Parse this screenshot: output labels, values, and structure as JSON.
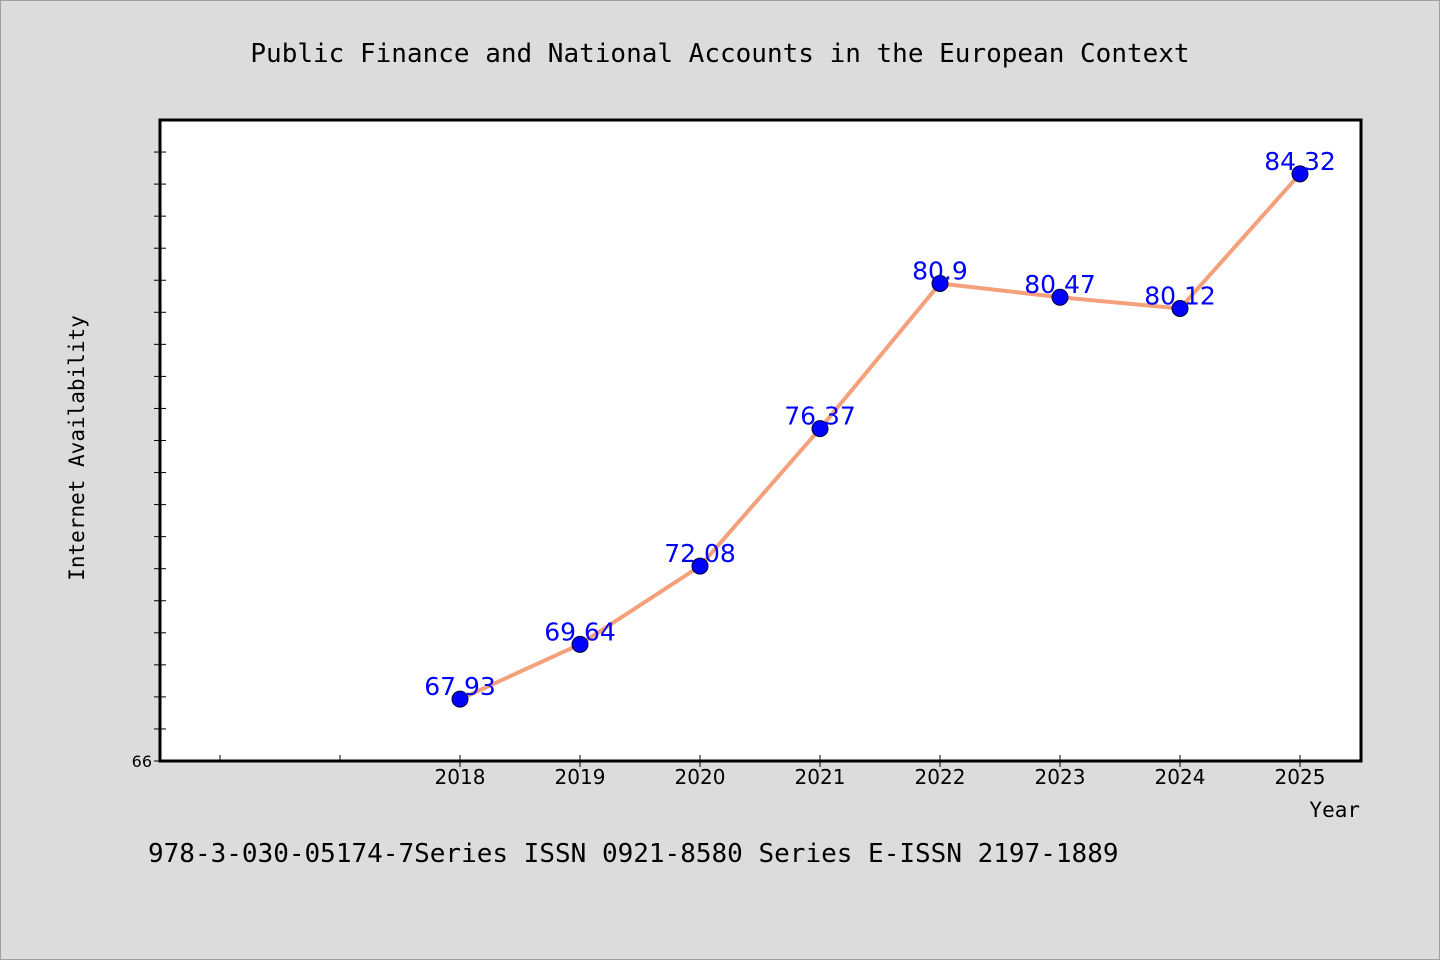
{
  "chart_data": {
    "type": "line",
    "title": "Public Finance and National Accounts in the European Context",
    "xlabel": "Year",
    "ylabel": "Internet Availability",
    "categories": [
      "2018",
      "2019",
      "2020",
      "2021",
      "2022",
      "2023",
      "2024",
      "2025"
    ],
    "series": [
      {
        "values": [
          67.93,
          69.64,
          72.08,
          76.37,
          80.9,
          80.47,
          80.12,
          84.32
        ]
      }
    ],
    "data_labels": [
      "67.93",
      "69.64",
      "72.08",
      "76.37",
      "80.9",
      "80.47",
      "80.12",
      "84.32"
    ],
    "ylim": [
      66,
      86
    ],
    "yticks_labeled": [
      "66"
    ],
    "line_color": "#f4a07a",
    "marker_color": "#0000ff",
    "label_color": "#0000ff",
    "grid": false
  },
  "footer": {
    "text": "978-3-030-05174-7Series ISSN 0921-8580 Series E-ISSN 2197-1889"
  }
}
